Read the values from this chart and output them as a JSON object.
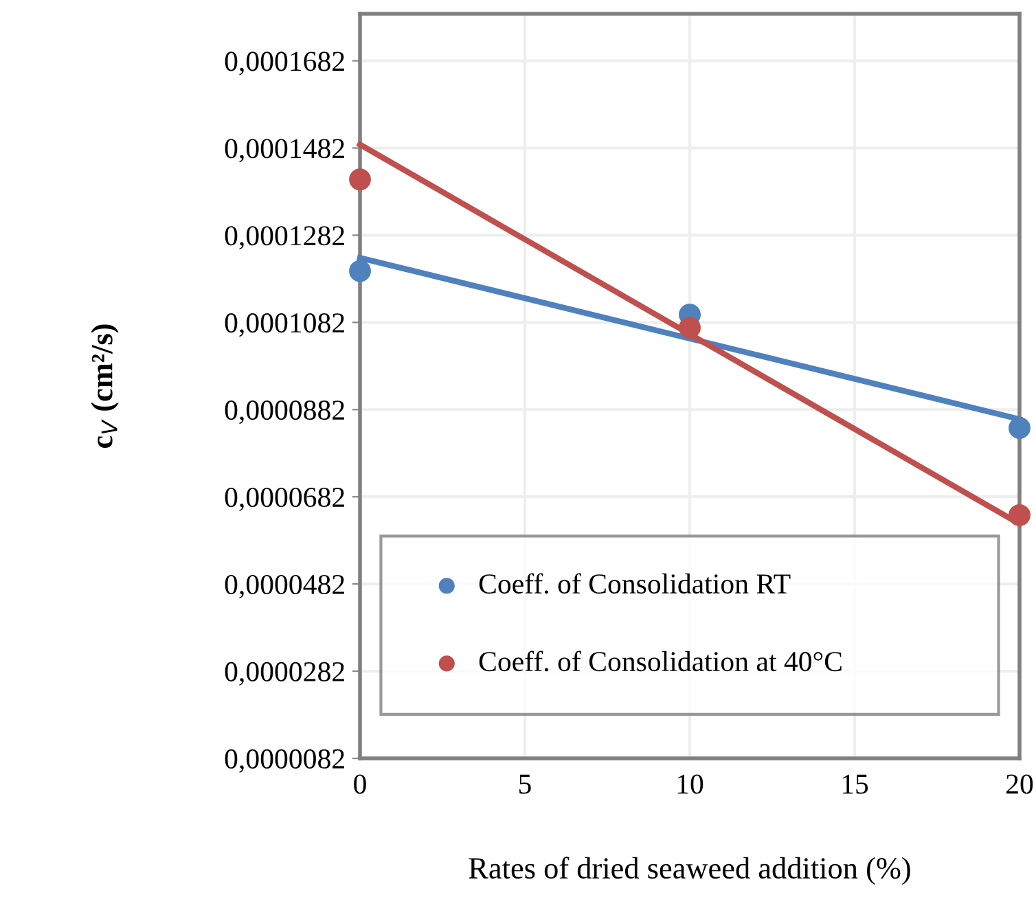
{
  "chart_data": {
    "type": "scatter",
    "xlabel": "Rates of dried seaweed addition (%)",
    "ylabel": "c$_{V}$ (cm²/s)",
    "xlim": [
      0,
      20
    ],
    "xticks": [
      0,
      5,
      10,
      15,
      20
    ],
    "ylim": [
      8.2e-06,
      0.000179
    ],
    "yticks": [
      {
        "value": 8.2e-06,
        "label": "0,0000082"
      },
      {
        "value": 2.82e-05,
        "label": "0,0000282"
      },
      {
        "value": 4.82e-05,
        "label": "0,0000482"
      },
      {
        "value": 6.82e-05,
        "label": "0,0000682"
      },
      {
        "value": 8.82e-05,
        "label": "0,0000882"
      },
      {
        "value": 0.0001082,
        "label": "0,0001082"
      },
      {
        "value": 0.0001282,
        "label": "0,0001282"
      },
      {
        "value": 0.0001482,
        "label": "0,0001482"
      },
      {
        "value": 0.0001682,
        "label": "0,0001682"
      }
    ],
    "grid": true,
    "legend": "bottom",
    "series": [
      {
        "name": "Coeff. of Consolidation RT",
        "color": "#4f81bd",
        "marker": "circle",
        "x": [
          0,
          10,
          20
        ],
        "values": [
          0.00012,
          0.00011,
          8.4e-05
        ]
      },
      {
        "name": "Coeff. of Consolidation at 40°C",
        "color": "#c0504d",
        "marker": "circle",
        "x": [
          0,
          10,
          20
        ],
        "values": [
          0.000141,
          0.000107,
          6.4e-05
        ]
      },
      {
        "type": "line",
        "marker": "none",
        "color": "#4f81bd",
        "x": [
          0,
          20
        ],
        "values": [
          0.000123,
          8.6e-05
        ]
      },
      {
        "type": "line",
        "marker": "none",
        "color": "#c0504d",
        "x": [
          0,
          20
        ],
        "values": [
          0.000149,
          6.2e-05
        ]
      }
    ]
  }
}
